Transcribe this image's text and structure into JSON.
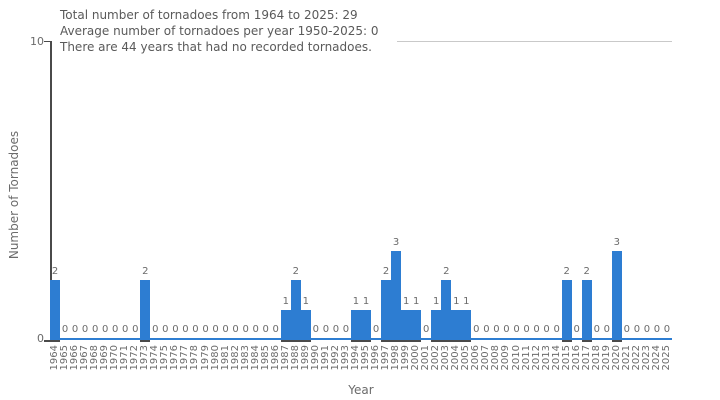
{
  "title_lines": [
    "Total number of tornadoes from 1964 to 2025: 29",
    "Average number of tornadoes per year 1950-2025: 0",
    "There are 44 years that had no recorded tornadoes."
  ],
  "chart_data": {
    "type": "bar",
    "title": "Total number of tornadoes from 1964 to 2025: 29",
    "subtitle_lines": [
      "Average number of tornadoes per year 1950-2025: 0",
      "There are 44 years that had no recorded tornadoes."
    ],
    "xlabel": "Year",
    "ylabel": "Number of Tornadoes",
    "ylim": [
      0,
      10
    ],
    "yticks": [
      0,
      10
    ],
    "ytick_labels": [
      "0",
      "10"
    ],
    "grid": "top gridline only",
    "legend": "none",
    "bar_value_labels_shown": true,
    "categories": [
      "1964",
      "1965",
      "1966",
      "1967",
      "1968",
      "1969",
      "1970",
      "1971",
      "1972",
      "1973",
      "1974",
      "1975",
      "1976",
      "1977",
      "1978",
      "1979",
      "1980",
      "1981",
      "1982",
      "1983",
      "1984",
      "1985",
      "1986",
      "1987",
      "1988",
      "1989",
      "1990",
      "1991",
      "1992",
      "1993",
      "1994",
      "1995",
      "1996",
      "1997",
      "1998",
      "1999",
      "2000",
      "2001",
      "2002",
      "2003",
      "2004",
      "2005",
      "2006",
      "2007",
      "2008",
      "2009",
      "2010",
      "2011",
      "2012",
      "2013",
      "2014",
      "2015",
      "2016",
      "2017",
      "2018",
      "2019",
      "2020",
      "2021",
      "2022",
      "2023",
      "2024",
      "2025"
    ],
    "values": [
      2,
      0,
      0,
      0,
      0,
      0,
      0,
      0,
      0,
      2,
      0,
      0,
      0,
      0,
      0,
      0,
      0,
      0,
      0,
      0,
      0,
      0,
      0,
      1,
      2,
      1,
      0,
      0,
      0,
      0,
      1,
      1,
      0,
      2,
      3,
      1,
      1,
      0,
      1,
      2,
      1,
      1,
      0,
      0,
      0,
      0,
      0,
      0,
      0,
      0,
      0,
      2,
      0,
      2,
      0,
      0,
      3,
      0,
      0,
      0,
      0,
      0
    ],
    "colors": {
      "bar": "#2d7dd2",
      "baseline": "#2d7dd2",
      "axis": "#4a4a4a",
      "gridline": "#c9c9c9",
      "title_text": "#5a5a5a",
      "tick_text": "#6b6b6b"
    }
  }
}
